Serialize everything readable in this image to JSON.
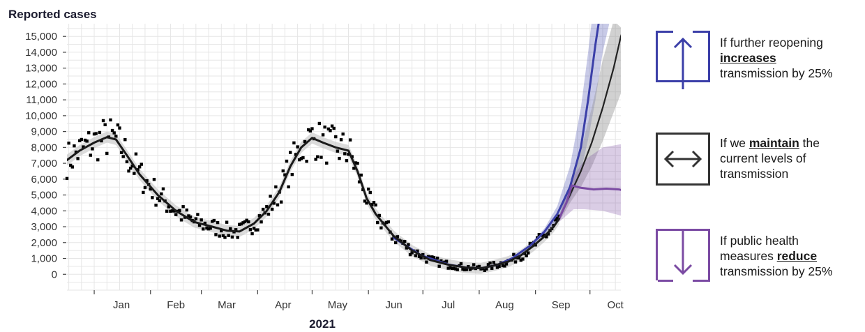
{
  "colors": {
    "observed": "#1a1a1a",
    "increase": "#3b3fa8",
    "maintain": "#222222",
    "reduce": "#7b4ba3",
    "grid": "#e6e6e6"
  },
  "chart_data": {
    "type": "line",
    "ylabel": "Reported cases",
    "xlabel": "2021",
    "ylim": [
      -1000,
      15800
    ],
    "yticks": [
      0,
      1000,
      2000,
      3000,
      4000,
      5000,
      6000,
      7000,
      8000,
      9000,
      10000,
      11000,
      12000,
      13000,
      14000,
      15000
    ],
    "ytick_labels": [
      "0",
      "1,000",
      "2,000",
      "3,000",
      "4,000",
      "5,000",
      "6,000",
      "7,000",
      "8,000",
      "9,000",
      "10,000",
      "11,000",
      "12,000",
      "13,000",
      "14,000",
      "15,000"
    ],
    "x_unit": "days since Jan 1 2021",
    "xlim": [
      -15,
      290
    ],
    "xticks": [
      {
        "label": "Jan",
        "x": 15
      },
      {
        "label": "Feb",
        "x": 45
      },
      {
        "label": "Mar",
        "x": 73
      },
      {
        "label": "Apr",
        "x": 104
      },
      {
        "label": "May",
        "x": 134
      },
      {
        "label": "Jun",
        "x": 165
      },
      {
        "label": "Jul",
        "x": 195
      },
      {
        "label": "Aug",
        "x": 226
      },
      {
        "label": "Sep",
        "x": 257
      },
      {
        "label": "Oct",
        "x": 287
      }
    ],
    "grid": true,
    "series": [
      {
        "name": "Reported cases (smoothed)",
        "role": "observed",
        "points": [
          [
            -15,
            7200
          ],
          [
            -8,
            7800
          ],
          [
            0,
            8300
          ],
          [
            7,
            8650
          ],
          [
            12,
            8500
          ],
          [
            18,
            7500
          ],
          [
            25,
            6300
          ],
          [
            35,
            5000
          ],
          [
            45,
            4000
          ],
          [
            55,
            3300
          ],
          [
            65,
            3000
          ],
          [
            73,
            2750
          ],
          [
            80,
            2700
          ],
          [
            88,
            3200
          ],
          [
            95,
            4000
          ],
          [
            102,
            5200
          ],
          [
            108,
            6800
          ],
          [
            114,
            8000
          ],
          [
            120,
            8600
          ],
          [
            126,
            8300
          ],
          [
            133,
            8000
          ],
          [
            140,
            7800
          ],
          [
            145,
            6500
          ],
          [
            150,
            4800
          ],
          [
            155,
            3800
          ],
          [
            165,
            2400
          ],
          [
            175,
            1500
          ],
          [
            185,
            900
          ],
          [
            195,
            600
          ],
          [
            205,
            420
          ],
          [
            213,
            380
          ],
          [
            220,
            550
          ],
          [
            228,
            800
          ],
          [
            235,
            1200
          ],
          [
            242,
            1800
          ],
          [
            248,
            2400
          ],
          [
            253,
            3000
          ],
          [
            256,
            3500
          ]
        ]
      },
      {
        "name": "If further reopening increases transmission by 25%",
        "role": "increase",
        "points": [
          [
            165,
            2300
          ],
          [
            180,
            1200
          ],
          [
            195,
            620
          ],
          [
            205,
            420
          ],
          [
            213,
            380
          ],
          [
            222,
            600
          ],
          [
            230,
            1000
          ],
          [
            240,
            1800
          ],
          [
            248,
            2700
          ],
          [
            255,
            3800
          ],
          [
            262,
            5500
          ],
          [
            268,
            8000
          ],
          [
            272,
            11000
          ],
          [
            276,
            14500
          ],
          [
            278,
            16000
          ]
        ],
        "band_low": [
          [
            240,
            1700
          ],
          [
            248,
            2500
          ],
          [
            255,
            3400
          ],
          [
            262,
            4700
          ],
          [
            268,
            6500
          ],
          [
            272,
            8500
          ],
          [
            276,
            11000
          ],
          [
            280,
            14000
          ],
          [
            284,
            16000
          ]
        ],
        "band_high": [
          [
            240,
            1900
          ],
          [
            248,
            2900
          ],
          [
            255,
            4300
          ],
          [
            262,
            6800
          ],
          [
            268,
            10500
          ],
          [
            272,
            14000
          ],
          [
            274,
            16000
          ]
        ]
      },
      {
        "name": "If we maintain the current levels of transmission",
        "role": "maintain",
        "points": [
          [
            256,
            3500
          ],
          [
            262,
            5000
          ],
          [
            268,
            6500
          ],
          [
            274,
            8300
          ],
          [
            280,
            10500
          ],
          [
            286,
            13000
          ],
          [
            290,
            15000
          ],
          [
            293,
            16000
          ]
        ],
        "band_low": [
          [
            256,
            3300
          ],
          [
            262,
            4500
          ],
          [
            268,
            5500
          ],
          [
            274,
            6800
          ],
          [
            280,
            8400
          ],
          [
            286,
            10200
          ],
          [
            292,
            12000
          ],
          [
            300,
            14500
          ]
        ],
        "band_high": [
          [
            256,
            3700
          ],
          [
            262,
            5700
          ],
          [
            268,
            7800
          ],
          [
            274,
            10500
          ],
          [
            280,
            13500
          ],
          [
            286,
            16000
          ]
        ]
      },
      {
        "name": "If public health measures reduce transmission by 25%",
        "role": "reduce",
        "points": [
          [
            256,
            3500
          ],
          [
            260,
            4500
          ],
          [
            263,
            5600
          ],
          [
            268,
            5450
          ],
          [
            275,
            5350
          ],
          [
            282,
            5400
          ],
          [
            289,
            5350
          ],
          [
            296,
            5150
          ],
          [
            302,
            4900
          ]
        ],
        "band_low": [
          [
            256,
            3300
          ],
          [
            260,
            3700
          ],
          [
            264,
            4100
          ],
          [
            270,
            4100
          ],
          [
            280,
            4000
          ],
          [
            290,
            3700
          ],
          [
            302,
            3300
          ]
        ],
        "band_high": [
          [
            256,
            3700
          ],
          [
            260,
            5000
          ],
          [
            264,
            6200
          ],
          [
            270,
            7200
          ],
          [
            280,
            8000
          ],
          [
            290,
            8200
          ],
          [
            302,
            7900
          ]
        ]
      }
    ]
  },
  "legend": [
    {
      "before": "If further reopening",
      "bold": "increases",
      "after_line": "",
      "last": "transmission by 25%",
      "icon": "arrow-up-icon"
    },
    {
      "before": "If we ",
      "bold": "maintain",
      "after_line": " the",
      "l2": "current levels of",
      "last": "transmission",
      "icon": "arrow-left-right-icon"
    },
    {
      "before": "If public health",
      "l2pre": "measures ",
      "bold": "reduce",
      "last": "transmission by 25%",
      "icon": "arrow-down-icon"
    }
  ]
}
